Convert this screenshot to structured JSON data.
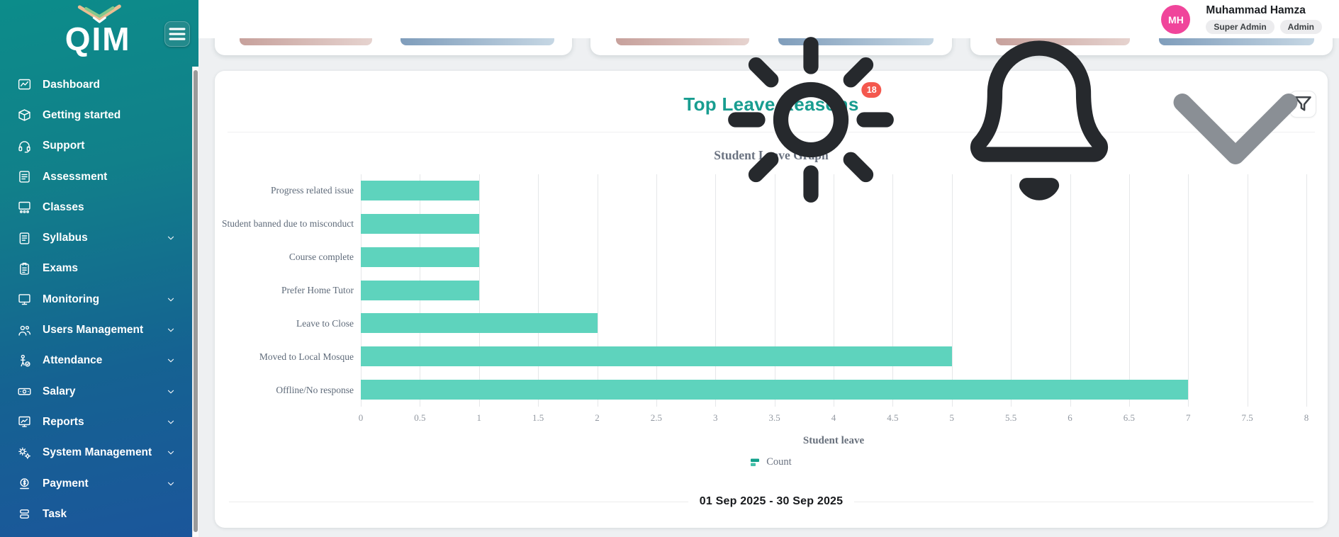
{
  "app": {
    "logo_text": "QIM"
  },
  "sidebar": {
    "items": [
      {
        "label": "Dashboard",
        "icon": "line-chart-icon",
        "expandable": false
      },
      {
        "label": "Getting started",
        "icon": "package-icon",
        "expandable": false
      },
      {
        "label": "Support",
        "icon": "headset-icon",
        "expandable": false
      },
      {
        "label": "Assessment",
        "icon": "assessment-icon",
        "expandable": false
      },
      {
        "label": "Classes",
        "icon": "classes-icon",
        "expandable": false
      },
      {
        "label": "Syllabus",
        "icon": "syllabus-icon",
        "expandable": true
      },
      {
        "label": "Exams",
        "icon": "exams-icon",
        "expandable": false
      },
      {
        "label": "Monitoring",
        "icon": "monitor-icon",
        "expandable": true
      },
      {
        "label": "Users Management",
        "icon": "users-icon",
        "expandable": true
      },
      {
        "label": "Attendance",
        "icon": "attendance-icon",
        "expandable": true
      },
      {
        "label": "Salary",
        "icon": "salary-icon",
        "expandable": true
      },
      {
        "label": "Reports",
        "icon": "reports-icon",
        "expandable": true
      },
      {
        "label": "System Management",
        "icon": "gears-icon",
        "expandable": true
      },
      {
        "label": "Payment",
        "icon": "payment-icon",
        "expandable": true
      },
      {
        "label": "Task",
        "icon": "task-icon",
        "expandable": false
      }
    ]
  },
  "header": {
    "user_name": "Muhammad Hamza",
    "user_initials": "MH",
    "roles": [
      "Super Admin",
      "Admin"
    ]
  },
  "top_cards": {
    "count": 3
  },
  "leave_card": {
    "title": "Top Leave Reasons",
    "badge_count": "18",
    "date_range": "01 Sep 2025 - 30 Sep 2025"
  },
  "chart_data": {
    "type": "bar",
    "orientation": "horizontal",
    "title": "Student Leave Graph",
    "categories": [
      "Progress related issue",
      "Student banned due to misconduct",
      "Course complete",
      "Prefer Home Tutor",
      "Leave to Close",
      "Moved to Local Mosque",
      "Offline/No response"
    ],
    "values": [
      1,
      1,
      1,
      1,
      2,
      5,
      7
    ],
    "series_name": "Count",
    "xlabel": "Student leave",
    "xlim": [
      0,
      8
    ],
    "xtick_labels": [
      "0",
      "0.5",
      "1",
      "1.5",
      "2",
      "2.5",
      "3",
      "3.5",
      "4",
      "4.5",
      "5",
      "5.5",
      "6",
      "6.5",
      "7",
      "7.5",
      "8"
    ],
    "grid": true,
    "legend_position": "bottom"
  },
  "colors": {
    "accent_teal": "#189d90",
    "badge_red": "#f4584e",
    "bar_teal": "#5ed3bd",
    "avatar_pink": "#f0459b",
    "sidebar_top": "#0c8c8a",
    "sidebar_bottom": "#1b569b"
  }
}
